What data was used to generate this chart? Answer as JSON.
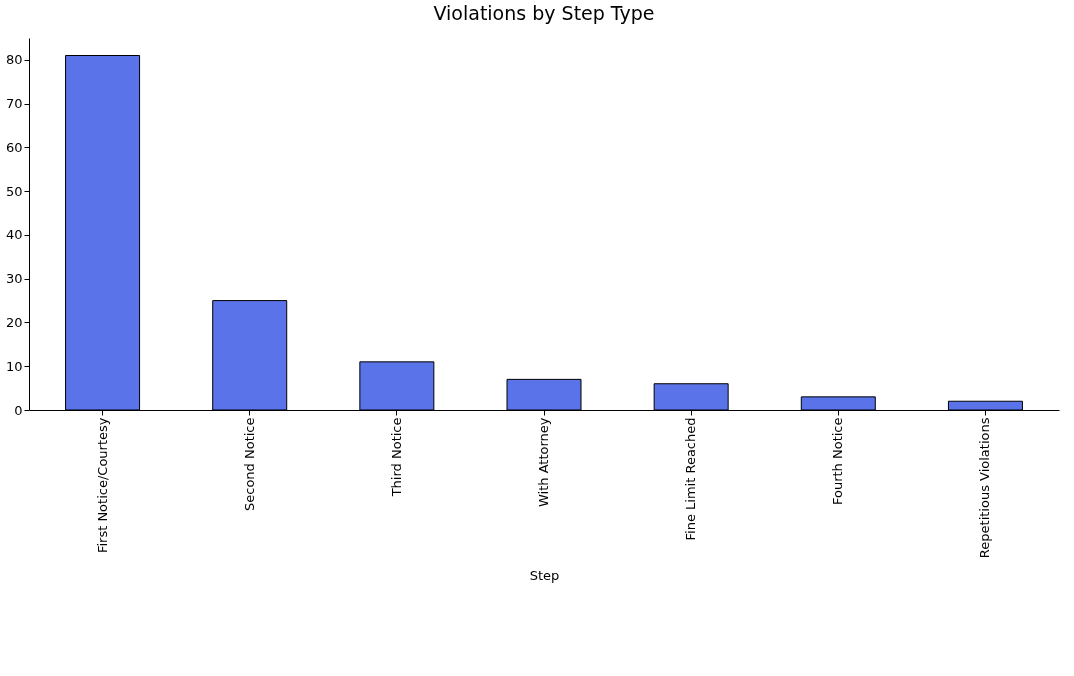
{
  "chart_data": {
    "type": "bar",
    "title": "Violations by Step Type",
    "xlabel": "Step",
    "categories": [
      "First Notice/Courtesy",
      "Second Notice",
      "Third Notice",
      "With Attorney",
      "Fine Limit Reached",
      "Fourth Notice",
      "Repetitious Violations"
    ],
    "values": [
      81,
      25,
      11,
      7,
      6,
      3,
      2
    ],
    "color": "#5b73e8",
    "ylim": [
      0,
      85
    ],
    "yticks": [
      0,
      10,
      20,
      30,
      40,
      50,
      60,
      70,
      80
    ],
    "grid": false
  }
}
